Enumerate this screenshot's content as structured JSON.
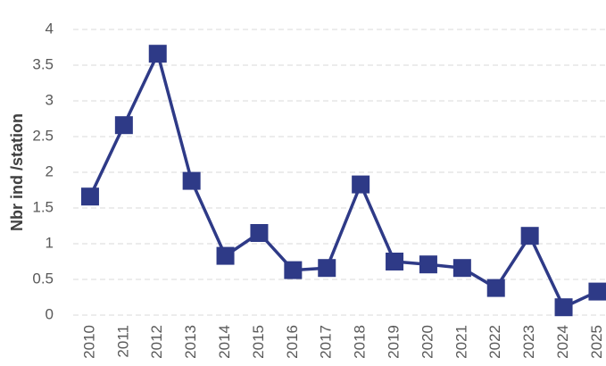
{
  "chart_data": {
    "type": "line",
    "y_label": "Nbr ind /station",
    "categories": [
      "2010",
      "2011",
      "2012",
      "2013",
      "2014",
      "2015",
      "2016",
      "2017",
      "2018",
      "2019",
      "2020",
      "2021",
      "2022",
      "2023",
      "2024",
      "2025"
    ],
    "series": [
      {
        "color": "#2e3a87",
        "values": [
          1.66,
          2.66,
          3.66,
          1.88,
          0.83,
          1.15,
          0.63,
          0.66,
          1.83,
          0.75,
          0.71,
          0.66,
          0.38,
          1.11,
          0.11,
          0.33
        ]
      }
    ],
    "ylim": [
      0,
      4
    ],
    "yticks": [
      0,
      0.5,
      1,
      1.5,
      2,
      2.5,
      3,
      3.5,
      4
    ],
    "grid": true
  }
}
